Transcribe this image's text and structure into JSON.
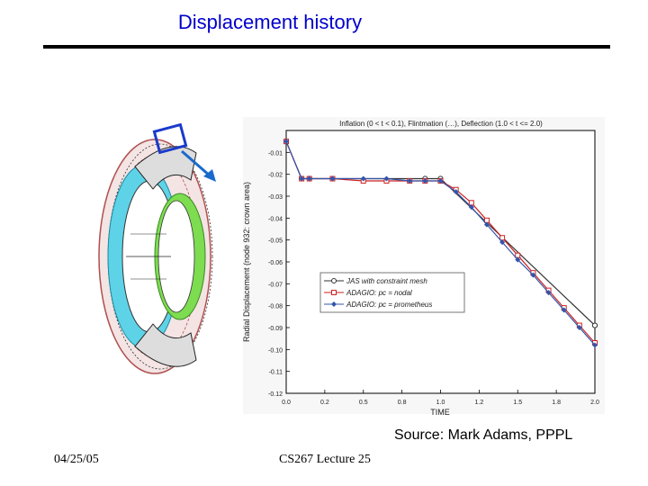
{
  "slide": {
    "title": "Displacement history",
    "source": "Source: Mark Adams, PPPL",
    "date": "04/25/05",
    "lecture": "CS267 Lecture 25"
  },
  "chart_data": {
    "type": "line",
    "title": "Inflation (0 < t < 0.1), Flintmation (…), Deflection (1.0 < t <= 2.0)",
    "xlabel": "TIME",
    "ylabel": "Radial Displacement (node 932: crown area)",
    "xlim": [
      0.0,
      2.0
    ],
    "ylim": [
      -0.12,
      0.0
    ],
    "xticks": [
      "0.0",
      "0.2",
      "0.5",
      "0.8",
      "1.0",
      "1.2",
      "1.5",
      "1.8",
      "2.0"
    ],
    "yticks": [
      "-0.01",
      "-0.02",
      "-0.03",
      "-0.04",
      "-0.05",
      "-0.06",
      "-0.07",
      "-0.08",
      "-0.09",
      "-0.10",
      "-0.11",
      "-0.12"
    ],
    "legend_position": "middle-left",
    "series": [
      {
        "name": "JAS with constraint mesh",
        "color": "#333333",
        "marker": "circle",
        "x": [
          0.0,
          0.1,
          0.15,
          0.9,
          1.0,
          2.0
        ],
        "y": [
          -0.005,
          -0.022,
          -0.022,
          -0.022,
          -0.022,
          -0.089
        ]
      },
      {
        "name": "ADAGIO: pc = nodal",
        "color": "#cc2222",
        "marker": "square",
        "x": [
          0.0,
          0.1,
          0.15,
          0.3,
          0.5,
          0.65,
          0.8,
          0.9,
          1.0,
          1.1,
          1.2,
          1.3,
          1.4,
          1.5,
          1.6,
          1.7,
          1.8,
          1.9,
          2.0
        ],
        "y": [
          -0.005,
          -0.022,
          -0.022,
          -0.022,
          -0.023,
          -0.023,
          -0.023,
          -0.023,
          -0.023,
          -0.027,
          -0.033,
          -0.041,
          -0.049,
          -0.057,
          -0.065,
          -0.073,
          -0.081,
          -0.089,
          -0.097
        ]
      },
      {
        "name": "ADAGIO: pc = prometheus",
        "color": "#3355aa",
        "marker": "diamond",
        "x": [
          0.0,
          0.1,
          0.15,
          0.3,
          0.5,
          0.65,
          0.8,
          0.9,
          1.0,
          1.1,
          1.2,
          1.3,
          1.4,
          1.5,
          1.6,
          1.7,
          1.8,
          1.9,
          2.0
        ],
        "y": [
          -0.005,
          -0.022,
          -0.022,
          -0.022,
          -0.022,
          -0.022,
          -0.023,
          -0.023,
          -0.023,
          -0.028,
          -0.035,
          -0.043,
          -0.051,
          -0.059,
          -0.066,
          -0.074,
          -0.082,
          -0.09,
          -0.098
        ]
      }
    ]
  }
}
